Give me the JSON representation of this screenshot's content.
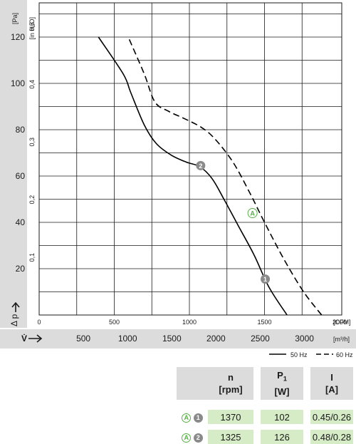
{
  "chart_data": {
    "type": "line",
    "y_primary": {
      "unit": "[Pa]",
      "ticks": [
        20,
        40,
        60,
        80,
        100,
        120
      ],
      "range": [
        0,
        130
      ],
      "label": "Δ p"
    },
    "y_secondary": {
      "unit": "[in H₂O]",
      "ticks": [
        "0,1",
        "0,2",
        "0,3",
        "0,4",
        "0,5"
      ]
    },
    "x_primary": {
      "unit": "[CFM]",
      "ticks": [
        0,
        500,
        1000,
        1500,
        2000
      ],
      "range": [
        0,
        2000
      ]
    },
    "x_secondary": {
      "unit": "[m³/h]",
      "label": "V̇",
      "ticks": [
        500,
        1000,
        1500,
        2000,
        2500,
        3000
      ]
    },
    "series": [
      {
        "name": "50 Hz",
        "style": "solid",
        "color": "#000000",
        "points": [
          [
            395,
            120
          ],
          [
            560,
            104
          ],
          [
            610,
            96
          ],
          [
            700,
            82
          ],
          [
            780,
            74
          ],
          [
            880,
            69
          ],
          [
            980,
            66
          ],
          [
            1070,
            64
          ],
          [
            1150,
            59
          ],
          [
            1230,
            50
          ],
          [
            1330,
            38
          ],
          [
            1430,
            26
          ],
          [
            1530,
            12
          ],
          [
            1650,
            0
          ]
        ]
      },
      {
        "name": "60 Hz",
        "style": "dashed",
        "color": "#000000",
        "points": [
          [
            600,
            119
          ],
          [
            700,
            104
          ],
          [
            770,
            92
          ],
          [
            860,
            88
          ],
          [
            960,
            85
          ],
          [
            1080,
            81
          ],
          [
            1170,
            76
          ],
          [
            1290,
            66
          ],
          [
            1400,
            53
          ],
          [
            1500,
            40
          ],
          [
            1630,
            24
          ],
          [
            1760,
            10
          ],
          [
            1880,
            0
          ]
        ]
      }
    ],
    "markers": [
      {
        "label": "2",
        "kind": "grey",
        "x": 1075,
        "y": 64.5
      },
      {
        "label": "1",
        "kind": "grey",
        "x": 1505,
        "y": 15.5
      },
      {
        "label": "A",
        "kind": "outline",
        "x": 1420,
        "y": 44
      }
    ],
    "legend": {
      "placement": "bottom-right",
      "items": [
        "50 Hz",
        "60 Hz"
      ]
    },
    "grid": true
  },
  "colors": {
    "panel": "#dcdcdc",
    "table_value": "#d6ecc6",
    "marker_grey": "#8a8a8a",
    "marker_green": "#57b146"
  },
  "table": {
    "headers": [
      {
        "main": "n",
        "unit": "[rpm]"
      },
      {
        "main": "P",
        "sub": "1",
        "unit": "[W]"
      },
      {
        "main": "I",
        "unit": "[A]"
      }
    ],
    "rows": [
      {
        "point": "A",
        "marker": "1",
        "n": "1370",
        "p": "102",
        "i": "0.45/0.26"
      },
      {
        "point": "A",
        "marker": "2",
        "n": "1325",
        "p": "126",
        "i": "0.48/0.28"
      }
    ]
  }
}
